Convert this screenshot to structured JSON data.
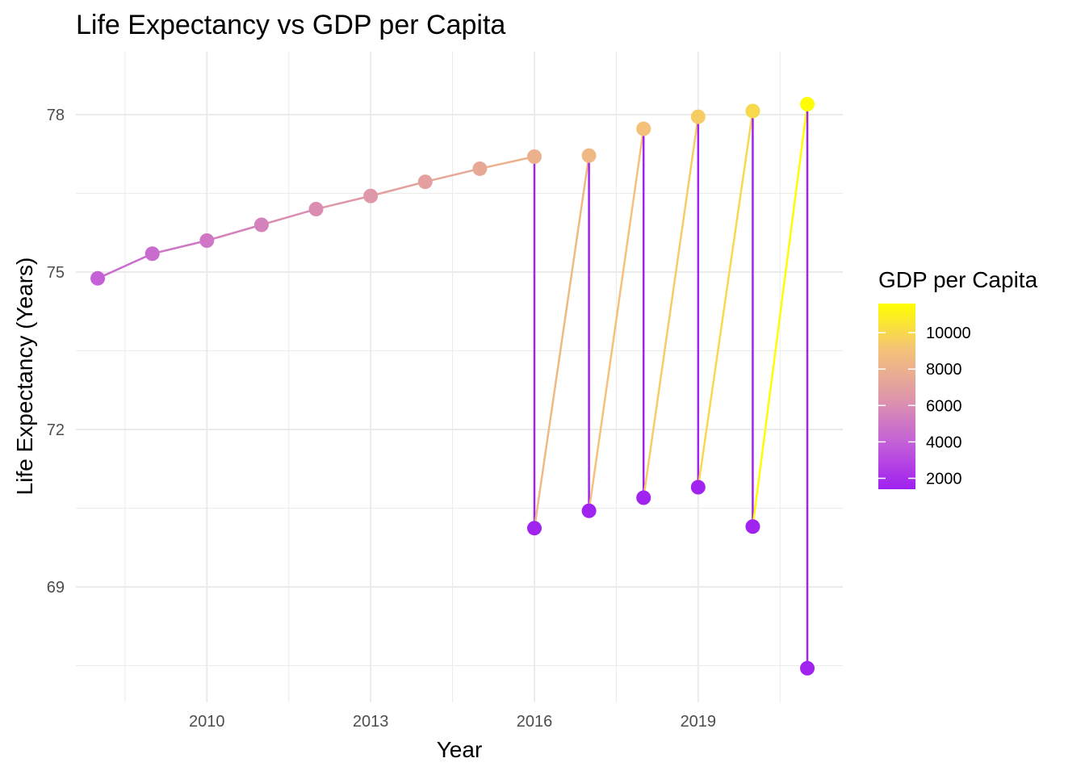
{
  "chart_data": {
    "type": "line",
    "title": "Life Expectancy vs GDP per Capita",
    "xlabel": "Year",
    "ylabel": "Life Expectancy (Years)",
    "xlim": [
      2007.6,
      2021.65
    ],
    "ylim": [
      66.8,
      79.2
    ],
    "x_ticks": [
      2010,
      2013,
      2016,
      2019
    ],
    "y_ticks": [
      69,
      72,
      75,
      78
    ],
    "grid": true,
    "legend": {
      "title": "GDP per Capita",
      "placement": "right",
      "type": "colorbar",
      "range": [
        1400,
        11600
      ],
      "ticks": [
        2000,
        4000,
        6000,
        8000,
        10000
      ],
      "color_low": "#a020f0",
      "color_high": "#ffff00"
    },
    "points": [
      {
        "year": 2008,
        "life_expectancy": 74.88,
        "gdp": 4000
      },
      {
        "year": 2009,
        "life_expectancy": 75.35,
        "gdp": 4500
      },
      {
        "year": 2010,
        "life_expectancy": 75.6,
        "gdp": 5000
      },
      {
        "year": 2011,
        "life_expectancy": 75.9,
        "gdp": 5500
      },
      {
        "year": 2012,
        "life_expectancy": 76.2,
        "gdp": 6000
      },
      {
        "year": 2013,
        "life_expectancy": 76.45,
        "gdp": 6500
      },
      {
        "year": 2014,
        "life_expectancy": 76.72,
        "gdp": 7000
      },
      {
        "year": 2015,
        "life_expectancy": 76.97,
        "gdp": 7500
      },
      {
        "year": 2016,
        "life_expectancy": 77.2,
        "gdp": 8000
      },
      {
        "year": 2016,
        "life_expectancy": 70.12,
        "gdp": 1500
      },
      {
        "year": 2017,
        "life_expectancy": 77.22,
        "gdp": 8500
      },
      {
        "year": 2017,
        "life_expectancy": 70.45,
        "gdp": 1500
      },
      {
        "year": 2018,
        "life_expectancy": 77.73,
        "gdp": 9000
      },
      {
        "year": 2018,
        "life_expectancy": 70.7,
        "gdp": 1500
      },
      {
        "year": 2019,
        "life_expectancy": 77.96,
        "gdp": 9500
      },
      {
        "year": 2019,
        "life_expectancy": 70.9,
        "gdp": 1500
      },
      {
        "year": 2020,
        "life_expectancy": 78.07,
        "gdp": 10000
      },
      {
        "year": 2020,
        "life_expectancy": 70.15,
        "gdp": 1500
      },
      {
        "year": 2021,
        "life_expectancy": 78.2,
        "gdp": 11500
      },
      {
        "year": 2021,
        "life_expectancy": 67.45,
        "gdp": 1500
      }
    ]
  }
}
